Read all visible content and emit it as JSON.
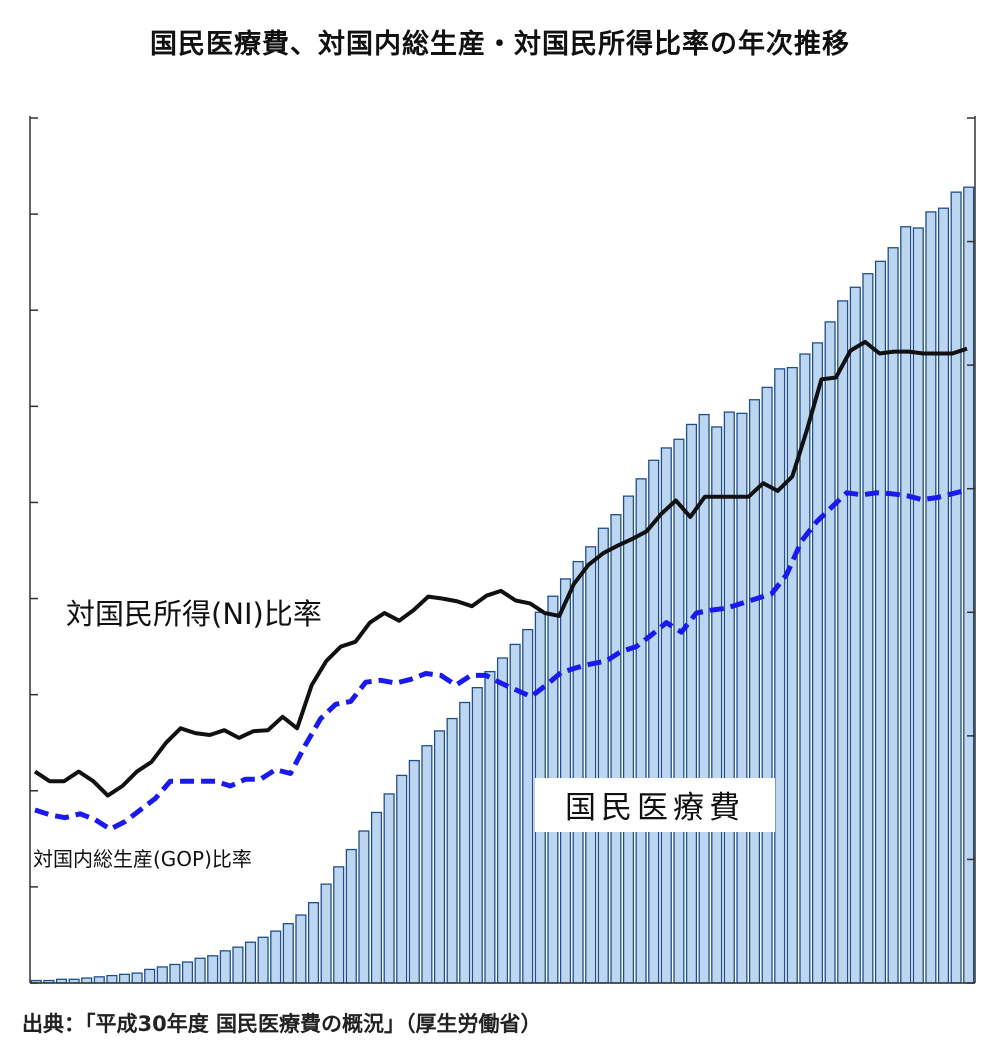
{
  "title": "国民医療費、対国内総生産・対国民所得比率の年次推移",
  "source": "出典：「平成30年度 国民医療費の概況」（厚生労働省）",
  "chart_data": {
    "type": "bar",
    "title": "国民医療費、対国内総生産・対国民所得比率の年次推移",
    "xlabel": "",
    "ylabel": "",
    "left_axis_range": [
      0,
      9
    ],
    "right_axis_range": [
      0,
      7
    ],
    "left_axis_ticks": [
      0,
      1,
      2,
      3,
      4,
      5,
      6,
      7,
      8,
      9
    ],
    "right_axis_ticks": [
      0,
      1,
      2,
      3,
      4,
      5,
      6,
      7
    ],
    "grid": false,
    "tick_labels_shown": false,
    "bar_color": "#bcd6f0",
    "bar_edge_color": "#1f4e8c",
    "series": [
      {
        "name": "国民医療費",
        "type": "bar",
        "axis": "right",
        "values": [
          0.02,
          0.02,
          0.03,
          0.03,
          0.04,
          0.05,
          0.06,
          0.07,
          0.08,
          0.11,
          0.13,
          0.15,
          0.17,
          0.2,
          0.22,
          0.26,
          0.29,
          0.33,
          0.37,
          0.42,
          0.48,
          0.55,
          0.65,
          0.8,
          0.94,
          1.08,
          1.23,
          1.38,
          1.53,
          1.68,
          1.8,
          1.92,
          2.04,
          2.14,
          2.27,
          2.39,
          2.52,
          2.63,
          2.74,
          2.86,
          3.0,
          3.13,
          3.27,
          3.41,
          3.53,
          3.68,
          3.79,
          3.94,
          4.08,
          4.23,
          4.33,
          4.4,
          4.52,
          4.6,
          4.5,
          4.62,
          4.61,
          4.72,
          4.82,
          4.97,
          4.98,
          5.09,
          5.18,
          5.35,
          5.52,
          5.63,
          5.74,
          5.84,
          5.95,
          6.12,
          6.11,
          6.24,
          6.27,
          6.4,
          6.44
        ]
      },
      {
        "name": "対国民所得(NI)比率",
        "type": "line",
        "axis": "left",
        "color": "#111111",
        "values": [
          2.2,
          2.1,
          2.1,
          2.2,
          2.1,
          1.95,
          2.05,
          2.2,
          2.3,
          2.5,
          2.65,
          2.6,
          2.58,
          2.63,
          2.55,
          2.62,
          2.63,
          2.77,
          2.65,
          3.1,
          3.35,
          3.5,
          3.55,
          3.75,
          3.85,
          3.77,
          3.88,
          4.02,
          4.0,
          3.97,
          3.92,
          4.03,
          4.08,
          3.98,
          3.95,
          3.85,
          3.82,
          4.15,
          4.35,
          4.47,
          4.55,
          4.62,
          4.7,
          4.88,
          5.02,
          4.85,
          5.06,
          5.06,
          5.06,
          5.06,
          5.2,
          5.12,
          5.27,
          5.75,
          6.28,
          6.3,
          6.58,
          6.67,
          6.55,
          6.57,
          6.57,
          6.55,
          6.55,
          6.55,
          6.6
        ]
      },
      {
        "name": "対国内総生産(GOP)比率",
        "type": "line",
        "axis": "left",
        "color": "#1a1aee",
        "dashed": true,
        "values": [
          1.8,
          1.75,
          1.72,
          1.76,
          1.7,
          1.6,
          1.68,
          1.8,
          1.92,
          2.1,
          2.1,
          2.1,
          2.1,
          2.05,
          2.12,
          2.12,
          2.22,
          2.18,
          2.48,
          2.75,
          2.9,
          2.93,
          3.13,
          3.15,
          3.12,
          3.16,
          3.22,
          3.2,
          3.1,
          3.2,
          3.2,
          3.12,
          3.05,
          2.98,
          3.1,
          3.23,
          3.28,
          3.32,
          3.35,
          3.45,
          3.5,
          3.62,
          3.75,
          3.65,
          3.85,
          3.88,
          3.9,
          3.95,
          4.0,
          4.05,
          4.25,
          4.6,
          4.8,
          4.95,
          5.1,
          5.08,
          5.1,
          5.09,
          5.07,
          5.03,
          5.05,
          5.09,
          5.13
        ]
      }
    ],
    "annotations": [
      {
        "text": "対国民所得(NI)比率"
      },
      {
        "text": "対国内総生産(GOP)比率"
      },
      {
        "text": "国民医療費",
        "boxed": true
      }
    ]
  }
}
